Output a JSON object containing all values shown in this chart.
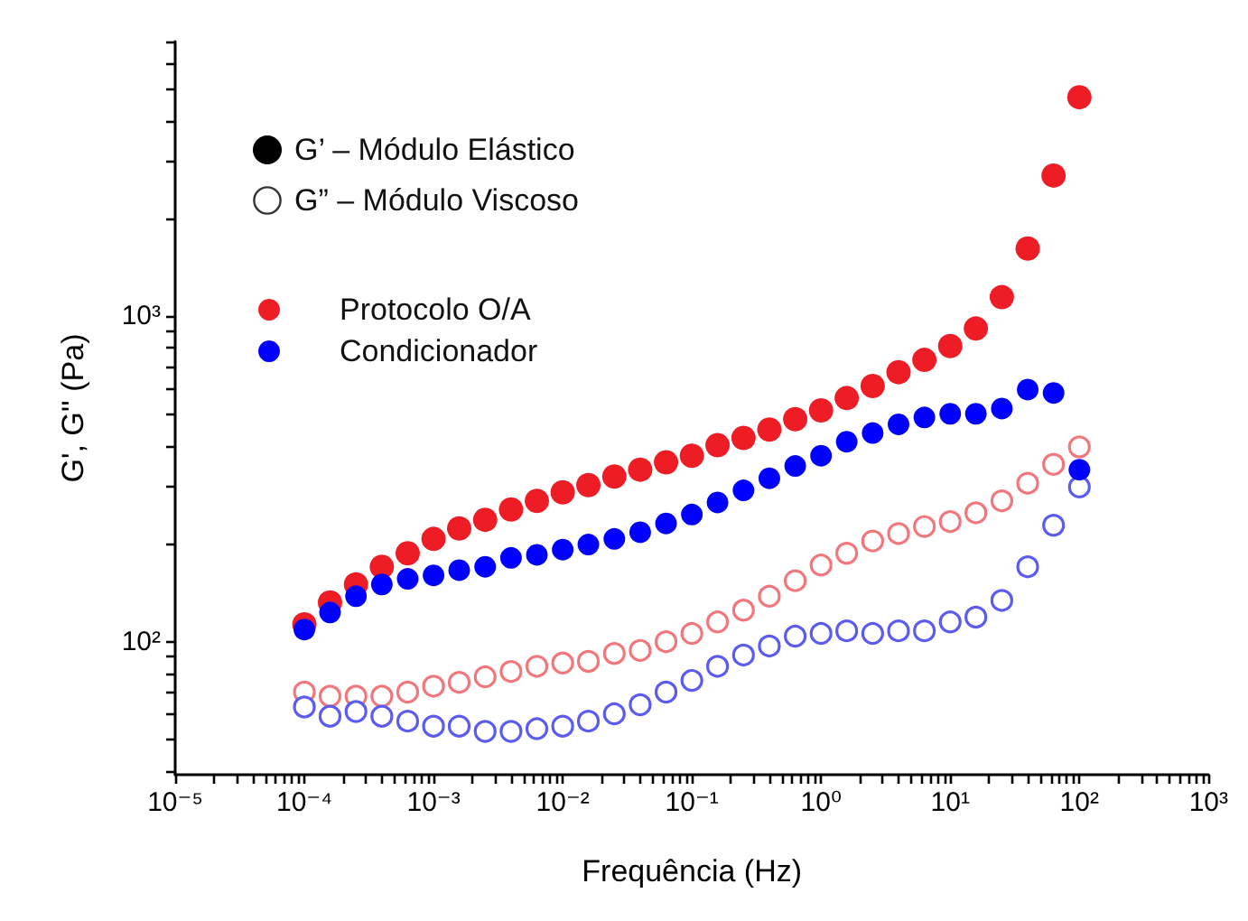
{
  "chart_data": {
    "type": "scatter",
    "xlabel": "Frequência (Hz)",
    "ylabel": "G', G'' (Pa)",
    "log": "xy",
    "marker": "circle",
    "legend": "top left",
    "grid": false,
    "annotations": [
      "G’ – Módulo Elástico",
      "G” – Módulo Viscoso"
    ],
    "xlim": [
      1e-05,
      1000
    ],
    "ylim": [
      39,
      7000
    ],
    "xticks": [
      {
        "value": 1e-05,
        "label": "10⁻⁵"
      },
      {
        "value": 0.0001,
        "label": "10⁻⁴"
      },
      {
        "value": 0.001,
        "label": "10⁻³"
      },
      {
        "value": 0.01,
        "label": "10⁻²"
      },
      {
        "value": 0.1,
        "label": "10⁻¹"
      },
      {
        "value": 1,
        "label": "10⁰"
      },
      {
        "value": 10,
        "label": "10¹"
      },
      {
        "value": 100,
        "label": "10²"
      },
      {
        "value": 1000,
        "label": "10³"
      },
      {
        "value": 2e-05,
        "label": null
      },
      {
        "value": 3e-05,
        "label": null
      },
      {
        "value": 4e-05,
        "label": null
      },
      {
        "value": 5e-05,
        "label": null
      },
      {
        "value": 6e-05,
        "label": null
      },
      {
        "value": 7e-05,
        "label": null
      },
      {
        "value": 8e-05,
        "label": null
      },
      {
        "value": 9e-05,
        "label": null
      },
      {
        "value": 0.0002,
        "label": null
      },
      {
        "value": 0.0003,
        "label": null
      },
      {
        "value": 0.0004,
        "label": null
      },
      {
        "value": 0.0005,
        "label": null
      },
      {
        "value": 0.0006,
        "label": null
      },
      {
        "value": 0.0007,
        "label": null
      },
      {
        "value": 0.0008,
        "label": null
      },
      {
        "value": 0.0009,
        "label": null
      },
      {
        "value": 0.002,
        "label": null
      },
      {
        "value": 0.003,
        "label": null
      },
      {
        "value": 0.004,
        "label": null
      },
      {
        "value": 0.005,
        "label": null
      },
      {
        "value": 0.006,
        "label": null
      },
      {
        "value": 0.007,
        "label": null
      },
      {
        "value": 0.008,
        "label": null
      },
      {
        "value": 0.009,
        "label": null
      },
      {
        "value": 0.02,
        "label": null
      },
      {
        "value": 0.03,
        "label": null
      },
      {
        "value": 0.04,
        "label": null
      },
      {
        "value": 0.05,
        "label": null
      },
      {
        "value": 0.06,
        "label": null
      },
      {
        "value": 0.07,
        "label": null
      },
      {
        "value": 0.08,
        "label": null
      },
      {
        "value": 0.09,
        "label": null
      },
      {
        "value": 0.2,
        "label": null
      },
      {
        "value": 0.3,
        "label": null
      },
      {
        "value": 0.4,
        "label": null
      },
      {
        "value": 0.5,
        "label": null
      },
      {
        "value": 0.6,
        "label": null
      },
      {
        "value": 0.7,
        "label": null
      },
      {
        "value": 0.8,
        "label": null
      },
      {
        "value": 0.9,
        "label": null
      },
      {
        "value": 2,
        "label": null
      },
      {
        "value": 3,
        "label": null
      },
      {
        "value": 4,
        "label": null
      },
      {
        "value": 5,
        "label": null
      },
      {
        "value": 6,
        "label": null
      },
      {
        "value": 7,
        "label": null
      },
      {
        "value": 8,
        "label": null
      },
      {
        "value": 9,
        "label": null
      },
      {
        "value": 20,
        "label": null
      },
      {
        "value": 30,
        "label": null
      },
      {
        "value": 40,
        "label": null
      },
      {
        "value": 50,
        "label": null
      },
      {
        "value": 60,
        "label": null
      },
      {
        "value": 70,
        "label": null
      },
      {
        "value": 80,
        "label": null
      },
      {
        "value": 90,
        "label": null
      },
      {
        "value": 200,
        "label": null
      },
      {
        "value": 300,
        "label": null
      },
      {
        "value": 400,
        "label": null
      },
      {
        "value": 500,
        "label": null
      },
      {
        "value": 600,
        "label": null
      },
      {
        "value": 700,
        "label": null
      },
      {
        "value": 800,
        "label": null
      },
      {
        "value": 900,
        "label": null
      }
    ],
    "yticks": [
      {
        "value": 100,
        "label": "10²"
      },
      {
        "value": 1000,
        "label": "10³"
      },
      {
        "value": 40,
        "label": null
      },
      {
        "value": 50,
        "label": null
      },
      {
        "value": 60,
        "label": null
      },
      {
        "value": 70,
        "label": null
      },
      {
        "value": 80,
        "label": null
      },
      {
        "value": 90,
        "label": null
      },
      {
        "value": 200,
        "label": null
      },
      {
        "value": 300,
        "label": null
      },
      {
        "value": 400,
        "label": null
      },
      {
        "value": 500,
        "label": null
      },
      {
        "value": 600,
        "label": null
      },
      {
        "value": 700,
        "label": null
      },
      {
        "value": 800,
        "label": null
      },
      {
        "value": 900,
        "label": null
      },
      {
        "value": 2000,
        "label": null
      },
      {
        "value": 3000,
        "label": null
      },
      {
        "value": 4000,
        "label": null
      },
      {
        "value": 5000,
        "label": null
      },
      {
        "value": 6000,
        "label": null
      },
      {
        "value": 7000,
        "label": null
      }
    ],
    "x": [
      0.0001,
      0.000158,
      0.000251,
      0.000398,
      0.000631,
      0.001,
      0.00158,
      0.00251,
      0.00398,
      0.00631,
      0.01,
      0.0158,
      0.0251,
      0.0398,
      0.0631,
      0.1,
      0.158,
      0.251,
      0.398,
      0.631,
      1,
      1.58,
      2.51,
      3.98,
      6.31,
      10,
      15.8,
      25.1,
      39.8,
      63.1,
      100
    ],
    "series": [
      {
        "name": "Protocolo O/A",
        "color": "#ee1c25",
        "values": [
          113,
          132,
          150,
          170,
          187,
          207,
          223,
          237,
          255,
          271,
          288,
          303,
          322,
          338,
          356,
          373,
          402,
          423,
          449,
          483,
          514,
          561,
          611,
          674,
          735,
          811,
          918,
          1146,
          1617,
          2711,
          4720
        ]
      },
      {
        "name": "Condicionador",
        "color": "#0000ff",
        "values": [
          109,
          123,
          138,
          150,
          156,
          160,
          166,
          170,
          181,
          185,
          192,
          199,
          207,
          217,
          231,
          246,
          268,
          292,
          318,
          347,
          373,
          412,
          438,
          466,
          489,
          502,
          502,
          521,
          596,
          582,
          338
        ]
      },
      {
        "color": "#f2777c",
        "values": [
          70,
          68,
          68,
          68,
          70,
          73,
          75,
          78,
          81,
          84,
          86,
          87,
          92,
          94,
          100,
          106,
          115,
          125,
          138,
          154,
          172,
          187,
          204,
          215,
          226,
          234,
          249,
          271,
          307,
          351,
          397
        ]
      },
      {
        "color": "#5b5bf2",
        "values": [
          63,
          59,
          61,
          59,
          57,
          55,
          55,
          53,
          53,
          54,
          55,
          57,
          60,
          64,
          70,
          76,
          84,
          91,
          97,
          104,
          106,
          108,
          106,
          108,
          108,
          115,
          119,
          134,
          170,
          228,
          299
        ]
      }
    ]
  }
}
